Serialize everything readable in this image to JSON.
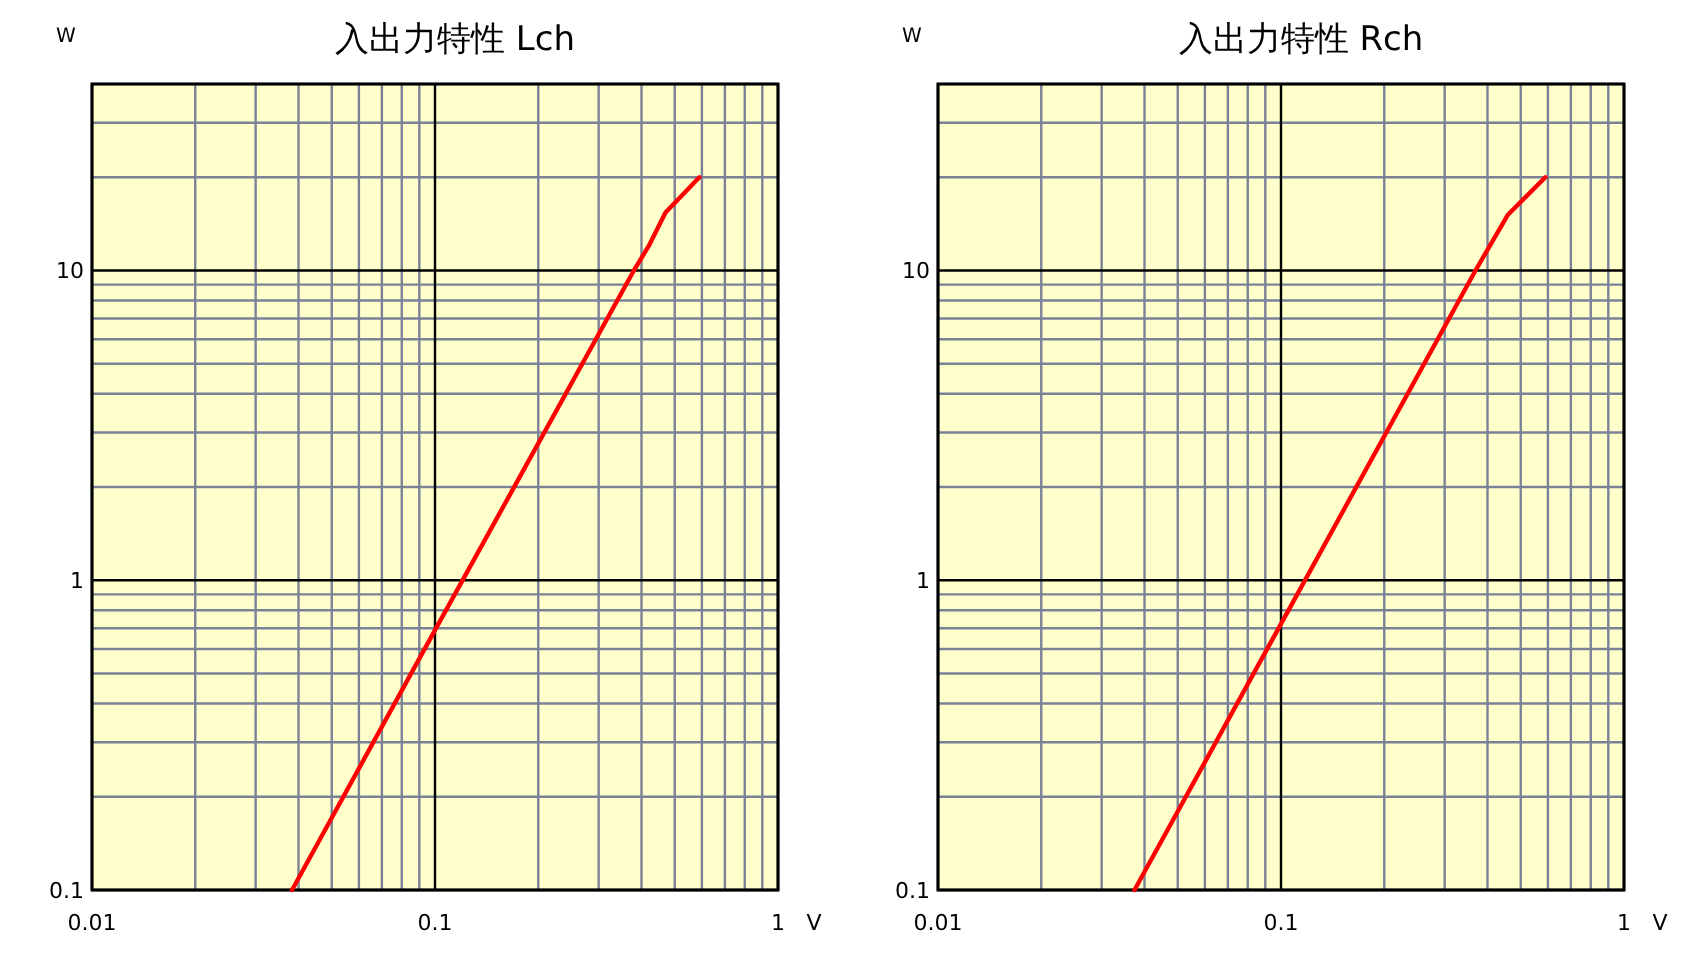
{
  "chart_data": [
    {
      "type": "line",
      "title": "入出力特性 Lch",
      "xlabel": "V",
      "ylabel": "W",
      "log": "xy",
      "grid": true,
      "xlim": [
        0.01,
        1
      ],
      "ylim": [
        0.1,
        40
      ],
      "xticks": [
        0.01,
        0.1,
        1
      ],
      "yticks": [
        0.1,
        1,
        10
      ],
      "series": [
        {
          "color": "#ff0000",
          "x": [
            0.0383,
            0.1,
            0.38,
            0.42,
            0.47,
            0.59
          ],
          "values": [
            0.1,
            0.69,
            10,
            12,
            15.4,
            20
          ]
        }
      ]
    },
    {
      "type": "line",
      "title": "入出力特性 Rch",
      "xlabel": "V",
      "ylabel": "W",
      "log": "xy",
      "grid": true,
      "xlim": [
        0.01,
        1
      ],
      "ylim": [
        0.1,
        40
      ],
      "xticks": [
        0.01,
        0.1,
        1
      ],
      "yticks": [
        0.1,
        1,
        10
      ],
      "series": [
        {
          "color": "#ff0000",
          "x": [
            0.0374,
            0.369,
            0.458,
            0.59
          ],
          "values": [
            0.1,
            10,
            15.1,
            20
          ]
        }
      ]
    }
  ]
}
